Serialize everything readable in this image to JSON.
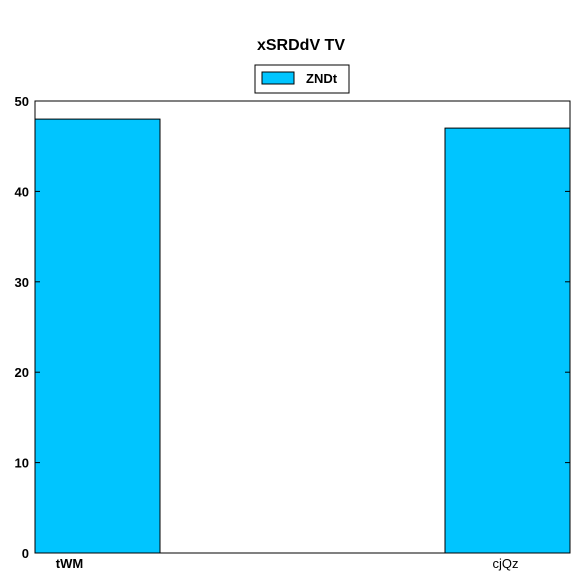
{
  "chart_data": {
    "type": "bar",
    "title": "xSRDdV TV",
    "categories": [
      "tWM",
      "cjQz"
    ],
    "category_bold": [
      true,
      false
    ],
    "series": [
      {
        "name": "ZNDt",
        "values": [
          48,
          47
        ],
        "color": "#00c5ff"
      }
    ],
    "xlabel": "",
    "ylabel": "",
    "ylim": [
      0,
      50
    ],
    "yticks": [
      0,
      10,
      20,
      30,
      40,
      50
    ],
    "grid": false,
    "legend_position": "top-center"
  }
}
